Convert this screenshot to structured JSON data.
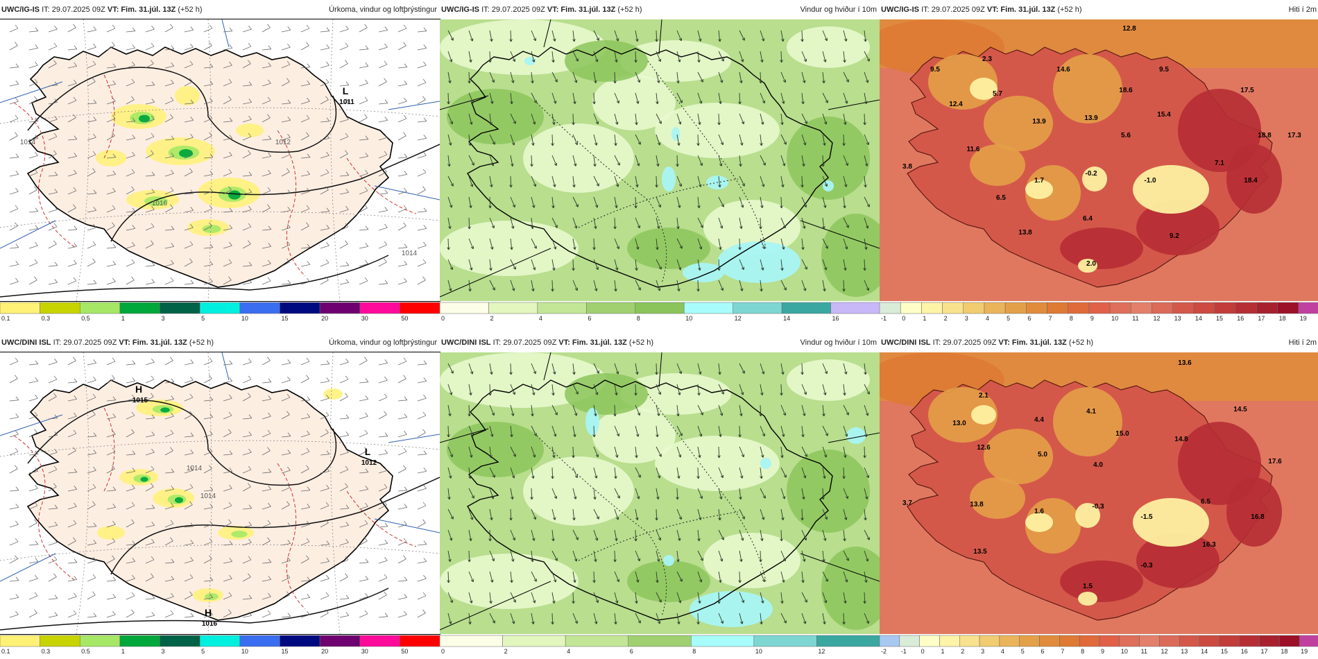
{
  "panels": [
    {
      "id": "p1",
      "model": "UWC/IG-IS",
      "it": "IT: 29.07.2025 09Z",
      "vt_label": "VT:",
      "vt": "Fim. 31.júl. 13Z",
      "lead": "(+52 h)",
      "title": "Úrkoma, vindur og loftþrýstingur",
      "map_type": "precip",
      "pressure_labels": [
        {
          "text": "L",
          "sub": "1011"
        },
        {
          "text": "1014"
        },
        {
          "text": "1012"
        },
        {
          "text": "1014"
        },
        {
          "text": "1016"
        }
      ],
      "legend": [
        "0.1",
        "0.3",
        "0.5",
        "1",
        "3",
        "5",
        "10",
        "15",
        "20",
        "30",
        "50"
      ],
      "legend_colors": [
        "#fff176",
        "#c8d400",
        "#a6e865",
        "#00a83c",
        "#006247",
        "#00f0e0",
        "#3a6ef0",
        "#000a80",
        "#6e0070",
        "#ff0a9a",
        "#ff0000"
      ]
    },
    {
      "id": "p2",
      "model": "UWC/IG-IS",
      "it": "IT: 29.07.2025 09Z",
      "vt_label": "VT:",
      "vt": "Fim. 31.júl. 13Z",
      "lead": "(+52 h)",
      "title": "Vindur og hviður í 10m",
      "map_type": "wind",
      "legend": [
        "0",
        "2",
        "4",
        "6",
        "8",
        "10",
        "12",
        "14",
        "16"
      ],
      "legend_colors": [
        "#fdfee8",
        "#e2f6be",
        "#c2e696",
        "#a0d070",
        "#8ac45a",
        "#a8fcfc",
        "#7ed6d2",
        "#3aa8a0",
        "#c8b8f8"
      ]
    },
    {
      "id": "p3",
      "model": "UWC/IG-IS",
      "it": "IT: 29.07.2025 09Z",
      "vt_label": "VT:",
      "vt": "Fim. 31.júl. 13Z",
      "lead": "(+52 h)",
      "title": "Hiti í 2m",
      "map_type": "temp",
      "temp_labels": [
        "12.8",
        "9.5",
        "2.3",
        "14.6",
        "9.5",
        "5.7",
        "12.4",
        "18.6",
        "17.5",
        "13.9",
        "13.9",
        "15.4",
        "5.6",
        "18.8",
        "17.3",
        "11.6",
        "3.8",
        "7.1",
        "1.7",
        "-0.2",
        "-1.0",
        "18.4",
        "6.5",
        "6.4",
        "13.8",
        "9.2",
        "2.0"
      ],
      "legend": [
        "-1",
        "0",
        "1",
        "2",
        "3",
        "4",
        "5",
        "6",
        "7",
        "8",
        "9",
        "10",
        "11",
        "12",
        "13",
        "14",
        "15",
        "16",
        "17",
        "18",
        "19"
      ],
      "legend_colors": [
        "#d8ecd8",
        "#fefec6",
        "#fdf4a8",
        "#f8e28e",
        "#f1cc70",
        "#eab45a",
        "#e4a048",
        "#e08c3c",
        "#de7a34",
        "#e06a3a",
        "#e06048",
        "#df6e5a",
        "#e37f6a",
        "#dc6a58",
        "#d4584a",
        "#cc4a40",
        "#c23c3a",
        "#b62e34",
        "#a8202e",
        "#9c1028",
        "#c040a0"
      ]
    },
    {
      "id": "p4",
      "model": "UWC/DINI ISL",
      "it": "IT: 29.07.2025 09Z",
      "vt_label": "VT:",
      "vt": "Fim. 31.júl. 13Z",
      "lead": "(+52 h)",
      "title": "Úrkoma, vindur og loftþrýstingur",
      "map_type": "precip",
      "pressure_labels": [
        {
          "text": "H",
          "sub": "1015"
        },
        {
          "text": "L",
          "sub": "1012"
        },
        {
          "text": "1014"
        },
        {
          "text": "1014"
        },
        {
          "text": "H",
          "sub": "1016"
        }
      ],
      "legend": [
        "0.1",
        "0.3",
        "0.5",
        "1",
        "3",
        "5",
        "10",
        "15",
        "20",
        "30",
        "50"
      ],
      "legend_colors": [
        "#fff176",
        "#c8d400",
        "#a6e865",
        "#00a83c",
        "#006247",
        "#00f0e0",
        "#3a6ef0",
        "#000a80",
        "#6e0070",
        "#ff0a9a",
        "#ff0000"
      ]
    },
    {
      "id": "p5",
      "model": "UWC/DINI ISL",
      "it": "IT: 29.07.2025 09Z",
      "vt_label": "VT:",
      "vt": "Fim. 31.júl. 13Z",
      "lead": "(+52 h)",
      "title": "Vindur og hviður í 10m",
      "map_type": "wind",
      "legend": [
        "0",
        "2",
        "4",
        "6",
        "8",
        "10",
        "12"
      ],
      "legend_colors": [
        "#fdfee8",
        "#e2f6be",
        "#c2e696",
        "#a0d070",
        "#a8fcfc",
        "#7ed6d2",
        "#3aa8a0"
      ]
    },
    {
      "id": "p6",
      "model": "UWC/DINI ISL",
      "it": "IT: 29.07.2025 09Z",
      "vt_label": "VT:",
      "vt": "Fim. 31.júl. 13Z",
      "lead": "(+52 h)",
      "title": "Hiti í 2m",
      "map_type": "temp",
      "temp_labels": [
        "13.6",
        "2.1",
        "13.0",
        "4.4",
        "4.1",
        "14.5",
        "12.6",
        "5.0",
        "15.0",
        "14.8",
        "4.0",
        "17.6",
        "3.7",
        "13.8",
        "1.6",
        "-0.3",
        "6.5",
        "-1.5",
        "16.8",
        "16.3",
        "13.5",
        "-0.3",
        "1.5"
      ],
      "legend": [
        "-2",
        "-1",
        "0",
        "1",
        "2",
        "3",
        "4",
        "5",
        "6",
        "7",
        "8",
        "9",
        "10",
        "11",
        "12",
        "13",
        "14",
        "15",
        "16",
        "17",
        "18",
        "19"
      ],
      "legend_colors": [
        "#a8c8f0",
        "#d8ecd8",
        "#fefec6",
        "#fdf4a8",
        "#f8e28e",
        "#f1cc70",
        "#eab45a",
        "#e4a048",
        "#e08c3c",
        "#de7a34",
        "#e06a3a",
        "#e06048",
        "#df6e5a",
        "#e37f6a",
        "#dc6a58",
        "#d4584a",
        "#cc4a40",
        "#c23c3a",
        "#b62e34",
        "#a8202e",
        "#9c1028",
        "#c040a0"
      ]
    }
  ]
}
